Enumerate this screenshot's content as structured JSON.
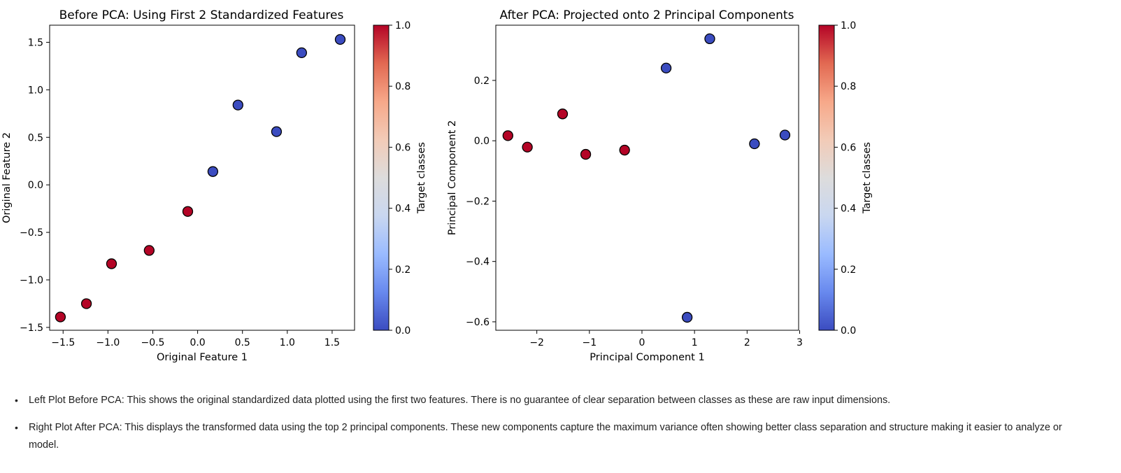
{
  "chart_data": [
    {
      "type": "scatter",
      "title": "Before PCA: Using First 2 Standardized Features",
      "xlabel": "Original Feature 1",
      "ylabel": "Original Feature 2",
      "xlim": [
        -1.65,
        1.75
      ],
      "ylim": [
        -1.53,
        1.68
      ],
      "xticks": [
        -1.5,
        -1.0,
        -0.5,
        0.0,
        0.5,
        1.0,
        1.5
      ],
      "xtick_labels": [
        "−1.5",
        "−1.0",
        "−0.5",
        "0.0",
        "0.5",
        "1.0",
        "1.5"
      ],
      "yticks": [
        -1.5,
        -1.0,
        -0.5,
        0.0,
        0.5,
        1.0,
        1.5
      ],
      "ytick_labels": [
        "−1.5",
        "−1.0",
        "−0.5",
        "0.0",
        "0.5",
        "1.0",
        "1.5"
      ],
      "points": [
        {
          "x": -1.53,
          "y": -1.39,
          "class": 1
        },
        {
          "x": -1.24,
          "y": -1.25,
          "class": 1
        },
        {
          "x": -0.96,
          "y": -0.83,
          "class": 1
        },
        {
          "x": -0.54,
          "y": -0.69,
          "class": 1
        },
        {
          "x": -0.11,
          "y": -0.28,
          "class": 1
        },
        {
          "x": 0.17,
          "y": 0.14,
          "class": 0
        },
        {
          "x": 0.45,
          "y": 0.84,
          "class": 0
        },
        {
          "x": 0.88,
          "y": 0.56,
          "class": 0
        },
        {
          "x": 1.16,
          "y": 1.39,
          "class": 0
        },
        {
          "x": 1.59,
          "y": 1.53,
          "class": 0
        }
      ],
      "colorbar": {
        "label": "Target classes",
        "ticks": [
          0.0,
          0.2,
          0.4,
          0.6,
          0.8,
          1.0
        ],
        "tick_labels": [
          "0.0",
          "0.2",
          "0.4",
          "0.6",
          "0.8",
          "1.0"
        ],
        "colormap": "coolwarm"
      },
      "grid": false
    },
    {
      "type": "scatter",
      "title": "After PCA: Projected onto 2 Principal Components",
      "xlabel": "Principal Component 1",
      "ylabel": "Principal Component 2",
      "xlim": [
        -2.78,
        2.98
      ],
      "ylim": [
        -0.628,
        0.383
      ],
      "xticks": [
        -2,
        -1,
        0,
        1,
        2,
        3
      ],
      "xtick_labels": [
        "−2",
        "−1",
        "0",
        "1",
        "2",
        "3"
      ],
      "yticks": [
        -0.6,
        -0.4,
        -0.2,
        0.0,
        0.2
      ],
      "ytick_labels": [
        "−0.6",
        "−0.4",
        "−0.2",
        "0.0",
        "0.2"
      ],
      "points": [
        {
          "x": -2.55,
          "y": 0.017,
          "class": 1
        },
        {
          "x": -2.18,
          "y": -0.021,
          "class": 1
        },
        {
          "x": -1.51,
          "y": 0.089,
          "class": 1
        },
        {
          "x": -1.07,
          "y": -0.045,
          "class": 1
        },
        {
          "x": -0.33,
          "y": -0.031,
          "class": 1
        },
        {
          "x": 0.46,
          "y": 0.241,
          "class": 0
        },
        {
          "x": 0.86,
          "y": -0.585,
          "class": 0
        },
        {
          "x": 1.29,
          "y": 0.338,
          "class": 0
        },
        {
          "x": 2.14,
          "y": -0.01,
          "class": 0
        },
        {
          "x": 2.72,
          "y": 0.019,
          "class": 0
        }
      ],
      "colorbar": {
        "label": "Target classes",
        "ticks": [
          0.0,
          0.2,
          0.4,
          0.6,
          0.8,
          1.0
        ],
        "tick_labels": [
          "0.0",
          "0.2",
          "0.4",
          "0.6",
          "0.8",
          "1.0"
        ],
        "colormap": "coolwarm"
      },
      "grid": false
    }
  ],
  "colors": {
    "class_0": "#3b4cc0",
    "class_1": "#b40426",
    "colormap_stops": [
      "#3b4cc0",
      "#6889ee",
      "#9abbff",
      "#c9d7f0",
      "#dddcdc",
      "#f2cbb7",
      "#f7a889",
      "#e26952",
      "#b40426"
    ]
  },
  "notes": [
    "Left Plot Before PCA: This shows the original standardized data plotted using the first two features. There is no guarantee of clear separation between classes as these are raw input dimensions.",
    "Right Plot After PCA: This displays the transformed data using the top 2 principal components. These new components capture the maximum variance often showing better class separation and structure making it easier to analyze or model."
  ]
}
